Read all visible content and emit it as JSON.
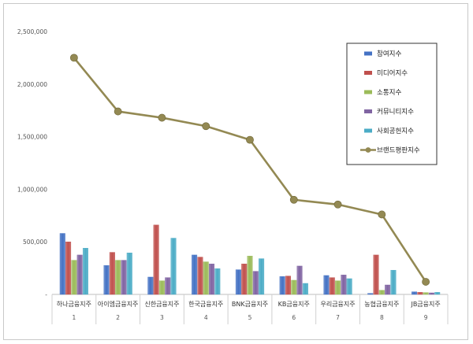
{
  "chart_data": {
    "type": "bar",
    "categories": [
      "하나금융지주",
      "아이엠금융지주",
      "신한금융지주",
      "한국금융지주",
      "BNK금융지주",
      "KB금융지주",
      "우리금융지주",
      "농협금융지주",
      "JB금융지주"
    ],
    "category_numbers": [
      "1",
      "2",
      "3",
      "4",
      "5",
      "6",
      "7",
      "8",
      "9"
    ],
    "yticks": [
      "-",
      "500,000",
      "1,000,000",
      "1,500,000",
      "2,000,000",
      "2,500,000"
    ],
    "ylim": [
      0,
      2500000
    ],
    "title": "",
    "xlabel": "",
    "ylabel": "",
    "grid": false,
    "legend_position": "top-right",
    "series": [
      {
        "name": "참여지수",
        "type": "bar",
        "color": "#4472c4",
        "values": [
          580000,
          275000,
          165000,
          375000,
          235000,
          170000,
          180000,
          10000,
          25000
        ]
      },
      {
        "name": "미디어지수",
        "type": "bar",
        "color": "#c0504d",
        "values": [
          500000,
          400000,
          660000,
          355000,
          290000,
          175000,
          160000,
          375000,
          20000
        ]
      },
      {
        "name": "소통지수",
        "type": "bar",
        "color": "#9bbb59",
        "values": [
          325000,
          325000,
          130000,
          310000,
          365000,
          135000,
          130000,
          40000,
          18000
        ]
      },
      {
        "name": "커뮤니티지수",
        "type": "bar",
        "color": "#8064a2",
        "values": [
          375000,
          325000,
          160000,
          290000,
          220000,
          270000,
          185000,
          90000,
          15000
        ]
      },
      {
        "name": "사회공헌지수",
        "type": "bar",
        "color": "#4bacc6",
        "values": [
          440000,
          395000,
          535000,
          245000,
          340000,
          105000,
          150000,
          230000,
          20000
        ]
      },
      {
        "name": "브랜드평판지수",
        "type": "line",
        "color": "#938953",
        "values": [
          2250000,
          1740000,
          1680000,
          1600000,
          1470000,
          900000,
          855000,
          760000,
          120000
        ]
      }
    ]
  }
}
